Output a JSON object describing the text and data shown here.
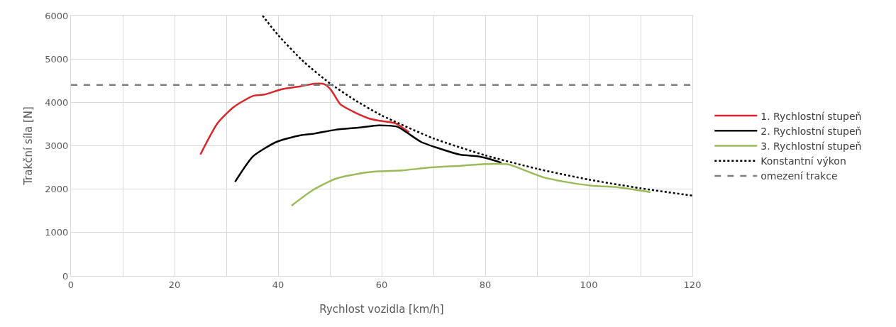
{
  "chart_data": {
    "type": "line",
    "xlabel": "Rychlost vozidla [km/h]",
    "ylabel": "Trakční síla [N]",
    "xlim": [
      0,
      120
    ],
    "ylim": [
      0,
      6000
    ],
    "xticks": [
      0,
      {
        "value": 10,
        "label": null
      },
      20,
      {
        "value": 30,
        "label": null
      },
      40,
      {
        "value": 50,
        "label": null
      },
      60,
      {
        "value": 70,
        "label": null
      },
      80,
      {
        "value": 90,
        "label": null
      },
      100,
      {
        "value": 110,
        "label": null
      },
      120
    ],
    "yticks": [
      0,
      1000,
      2000,
      3000,
      4000,
      5000,
      6000
    ],
    "grid": true,
    "legend": "right",
    "marker": "none",
    "series": [
      {
        "name": "1. Rychlostní stupeň",
        "color": "#d9262b",
        "line_style": "solid",
        "x": [
          25,
          28.3,
          31.5,
          35.2,
          37.4,
          40.6,
          44.3,
          47,
          48.9,
          50.2,
          52,
          54.3,
          57.5,
          59.4,
          62.6,
          65.3
        ],
        "values": [
          2800,
          3520,
          3900,
          4150,
          4180,
          4300,
          4370,
          4430,
          4420,
          4290,
          3960,
          3800,
          3630,
          3580,
          3520,
          3310
        ]
      },
      {
        "name": "2. Rychlostní stupeň",
        "color": "#000000",
        "line_style": "solid",
        "x": [
          31.7,
          35.2,
          39.7,
          44.3,
          47,
          51.1,
          55.7,
          59.4,
          63,
          64.8,
          67.6,
          70.8,
          75.3,
          78.5,
          80.4,
          83.1
        ],
        "values": [
          2170,
          2760,
          3090,
          3240,
          3280,
          3370,
          3420,
          3470,
          3440,
          3310,
          3090,
          2950,
          2790,
          2760,
          2710,
          2610
        ]
      },
      {
        "name": "3. Rychlostní stupeň",
        "color": "#9bbb59",
        "line_style": "solid",
        "x": [
          42.6,
          46.6,
          51.1,
          55.7,
          59.4,
          63.9,
          69.4,
          75.3,
          79.9,
          84.5,
          87.7,
          91.3,
          95.9,
          100.5,
          105,
          111.9
        ],
        "values": [
          1620,
          1970,
          2240,
          2360,
          2410,
          2430,
          2500,
          2540,
          2580,
          2570,
          2430,
          2270,
          2160,
          2080,
          2050,
          1930
        ]
      },
      {
        "name": "Konstantní výkon",
        "color": "#000000",
        "line_style": "dotted",
        "x": [
          37,
          40,
          45,
          50,
          55,
          60,
          70,
          80,
          90,
          100,
          110,
          120
        ],
        "values": [
          6000,
          5550,
          4930,
          4440,
          4040,
          3700,
          3170,
          2780,
          2470,
          2220,
          2020,
          1850
        ]
      },
      {
        "name": "omezení trakce",
        "color": "#808080",
        "line_style": "dashed",
        "x": [
          0,
          120
        ],
        "values": [
          4400,
          4400
        ]
      }
    ]
  }
}
